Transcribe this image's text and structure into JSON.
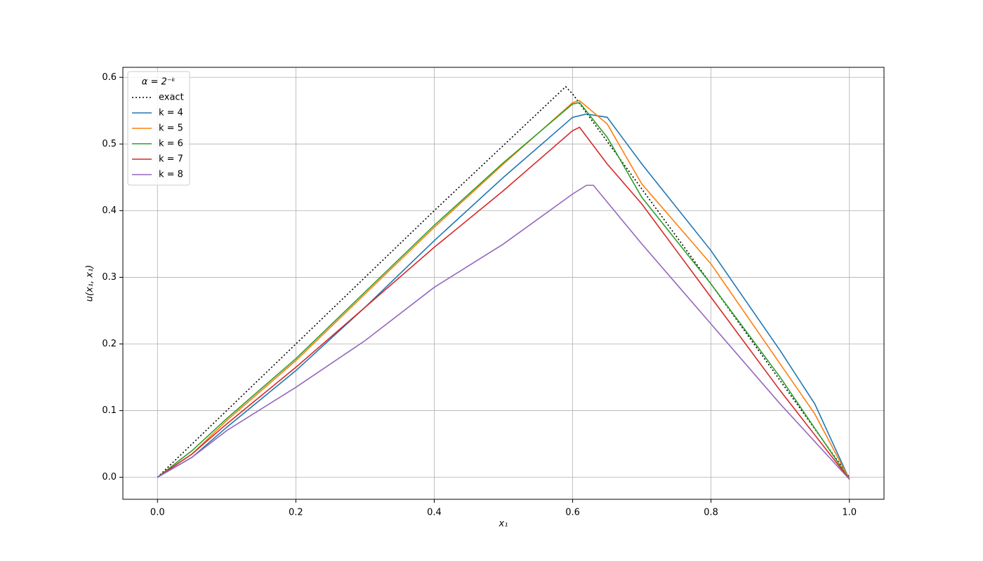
{
  "chart_data": {
    "type": "line",
    "xlabel": "x₁",
    "ylabel": "u(x₁, x₁)",
    "legend_title": "α = 2⁻ᵏ",
    "legend": "upper left",
    "grid": true,
    "xlim": [
      -0.05,
      1.05
    ],
    "ylim": [
      -0.033,
      0.615
    ],
    "xticks": [
      {
        "value": 0,
        "label": "0.0"
      },
      0.2,
      0.4,
      0.6,
      0.8,
      {
        "value": 1,
        "label": "1.0"
      }
    ],
    "yticks": [
      {
        "value": 0,
        "label": "0.0"
      },
      0.1,
      0.2,
      0.3,
      0.4,
      0.5,
      0.6
    ],
    "series": [
      {
        "name": "exact",
        "color": "#000000",
        "dash": "dotted",
        "x": [
          0,
          0.2,
          0.4,
          0.59,
          0.6,
          0.8,
          1.0
        ],
        "values": [
          0,
          0.2,
          0.4,
          0.586,
          0.575,
          0.29,
          0
        ]
      },
      {
        "name": "k = 4",
        "color": "#1f77b4",
        "x": [
          0,
          0.05,
          0.1,
          0.2,
          0.3,
          0.4,
          0.5,
          0.6,
          0.62,
          0.65,
          0.7,
          0.8,
          0.9,
          0.95,
          1.0
        ],
        "values": [
          0,
          0.03,
          0.075,
          0.16,
          0.255,
          0.355,
          0.45,
          0.54,
          0.545,
          0.54,
          0.47,
          0.34,
          0.19,
          0.11,
          -0.003
        ]
      },
      {
        "name": "k = 5",
        "color": "#ff7f0e",
        "x": [
          0,
          0.05,
          0.1,
          0.2,
          0.3,
          0.4,
          0.5,
          0.6,
          0.61,
          0.65,
          0.7,
          0.8,
          0.9,
          0.95,
          1.0
        ],
        "values": [
          0,
          0.035,
          0.085,
          0.175,
          0.275,
          0.375,
          0.47,
          0.562,
          0.565,
          0.53,
          0.44,
          0.32,
          0.17,
          0.095,
          -0.003
        ]
      },
      {
        "name": "k = 6",
        "color": "#2ca02c",
        "x": [
          0,
          0.05,
          0.1,
          0.2,
          0.3,
          0.4,
          0.5,
          0.6,
          0.61,
          0.65,
          0.7,
          0.8,
          0.9,
          1.0
        ],
        "values": [
          0,
          0.04,
          0.088,
          0.178,
          0.278,
          0.378,
          0.472,
          0.56,
          0.562,
          0.51,
          0.42,
          0.29,
          0.15,
          -0.003
        ]
      },
      {
        "name": "k = 7",
        "color": "#d62728",
        "x": [
          0,
          0.05,
          0.1,
          0.2,
          0.3,
          0.4,
          0.5,
          0.6,
          0.61,
          0.65,
          0.7,
          0.75,
          0.8,
          0.9,
          1.0
        ],
        "values": [
          0,
          0.035,
          0.08,
          0.165,
          0.255,
          0.345,
          0.43,
          0.52,
          0.525,
          0.47,
          0.41,
          0.34,
          0.27,
          0.13,
          -0.003
        ]
      },
      {
        "name": "k = 8",
        "color": "#9467bd",
        "x": [
          0,
          0.05,
          0.1,
          0.2,
          0.3,
          0.4,
          0.5,
          0.6,
          0.62,
          0.63,
          0.7,
          0.75,
          0.8,
          0.9,
          1.0
        ],
        "values": [
          0,
          0.03,
          0.07,
          0.135,
          0.205,
          0.285,
          0.35,
          0.425,
          0.438,
          0.438,
          0.35,
          0.29,
          0.23,
          0.11,
          -0.003
        ]
      }
    ]
  }
}
